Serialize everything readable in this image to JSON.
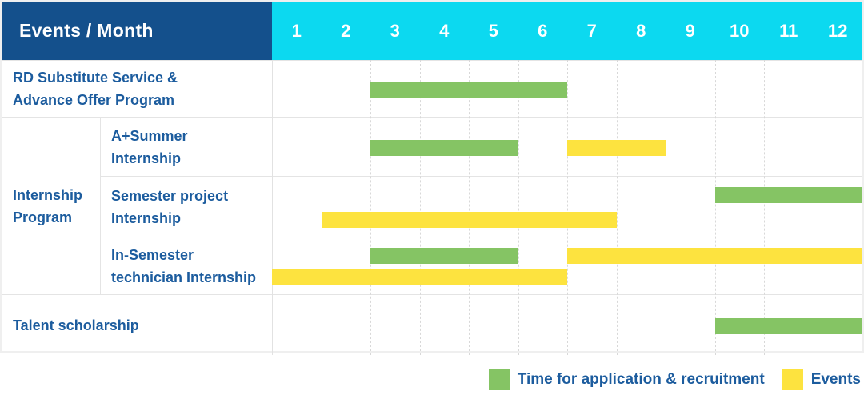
{
  "header": {
    "title": "Events / Month",
    "months": [
      "1",
      "2",
      "3",
      "4",
      "5",
      "6",
      "7",
      "8",
      "9",
      "10",
      "11",
      "12"
    ]
  },
  "colors": {
    "header_bg": "#14508C",
    "months_bg": "#0CD9F0",
    "header_text": "#FFFFFF",
    "label_text": "#1C5C9E",
    "green": "#85C464",
    "yellow": "#FDE33F",
    "row_border": "#E4E4E4",
    "gridline": "#D8D8D8"
  },
  "rows": [
    {
      "id": "rd-substitute-service",
      "label_lines": [
        "RD Substitute Service &",
        "Advance Offer Program"
      ],
      "bars": [
        {
          "color": "green",
          "start_month": 3,
          "end_month": 6,
          "lane": "middle"
        }
      ]
    },
    {
      "id": "internship-program",
      "group_label_lines": [
        "Internship",
        "Program"
      ],
      "children": [
        {
          "id": "a-plus-summer-internship",
          "label_lines": [
            "A+Summer",
            "Internship"
          ],
          "bars": [
            {
              "color": "green",
              "start_month": 3,
              "end_month": 5,
              "lane": "middle"
            },
            {
              "color": "yellow",
              "start_month": 7,
              "end_month": 8,
              "lane": "middle"
            }
          ]
        },
        {
          "id": "semester-project-internship",
          "label_lines": [
            "Semester project",
            "Internship"
          ],
          "bars": [
            {
              "color": "green",
              "start_month": 10,
              "end_month": 12,
              "lane": "top"
            },
            {
              "color": "yellow",
              "start_month": 2,
              "end_month": 7,
              "lane": "bottom"
            }
          ]
        },
        {
          "id": "in-semester-technician-internship",
          "label_lines": [
            "In-Semester",
            "technician Internship"
          ],
          "bars": [
            {
              "color": "green",
              "start_month": 3,
              "end_month": 5,
              "lane": "top"
            },
            {
              "color": "yellow",
              "start_month": 7,
              "end_month": 12,
              "lane": "top"
            },
            {
              "color": "yellow",
              "start_month": 1,
              "end_month": 6,
              "lane": "bottom"
            }
          ]
        }
      ]
    },
    {
      "id": "talent-scholarship",
      "label_lines": [
        "Talent scholarship"
      ],
      "bars": [
        {
          "color": "green",
          "start_month": 10,
          "end_month": 12,
          "lane": "middle"
        }
      ]
    }
  ],
  "legend": [
    {
      "label": "Time for application & recruitment",
      "color_key": "green"
    },
    {
      "label": "Events",
      "color_key": "yellow"
    }
  ],
  "chart_data": {
    "type": "gantt",
    "title": "Events / Month",
    "x_axis": {
      "label": "Month",
      "ticks": [
        1,
        2,
        3,
        4,
        5,
        6,
        7,
        8,
        9,
        10,
        11,
        12
      ],
      "range": [
        1,
        12
      ]
    },
    "grid": true,
    "legend_position": "bottom-right",
    "series_legend": [
      {
        "name": "Time for application & recruitment",
        "color": "#85C464"
      },
      {
        "name": "Events",
        "color": "#FDE33F"
      }
    ],
    "tasks": [
      {
        "row": "RD Substitute Service & Advance Offer Program",
        "group": null,
        "spans": [
          {
            "series": "Time for application & recruitment",
            "start_month": 3,
            "end_month": 6
          }
        ]
      },
      {
        "row": "A+Summer Internship",
        "group": "Internship Program",
        "spans": [
          {
            "series": "Time for application & recruitment",
            "start_month": 3,
            "end_month": 5
          },
          {
            "series": "Events",
            "start_month": 7,
            "end_month": 8
          }
        ]
      },
      {
        "row": "Semester project Internship",
        "group": "Internship Program",
        "spans": [
          {
            "series": "Time for application & recruitment",
            "start_month": 10,
            "end_month": 12
          },
          {
            "series": "Events",
            "start_month": 2,
            "end_month": 7
          }
        ]
      },
      {
        "row": "In-Semester technician Internship",
        "group": "Internship Program",
        "spans": [
          {
            "series": "Time for application & recruitment",
            "start_month": 3,
            "end_month": 5
          },
          {
            "series": "Events",
            "start_month": 7,
            "end_month": 12
          },
          {
            "series": "Events",
            "start_month": 1,
            "end_month": 6
          }
        ]
      },
      {
        "row": "Talent scholarship",
        "group": null,
        "spans": [
          {
            "series": "Time for application & recruitment",
            "start_month": 10,
            "end_month": 12
          }
        ]
      }
    ]
  }
}
